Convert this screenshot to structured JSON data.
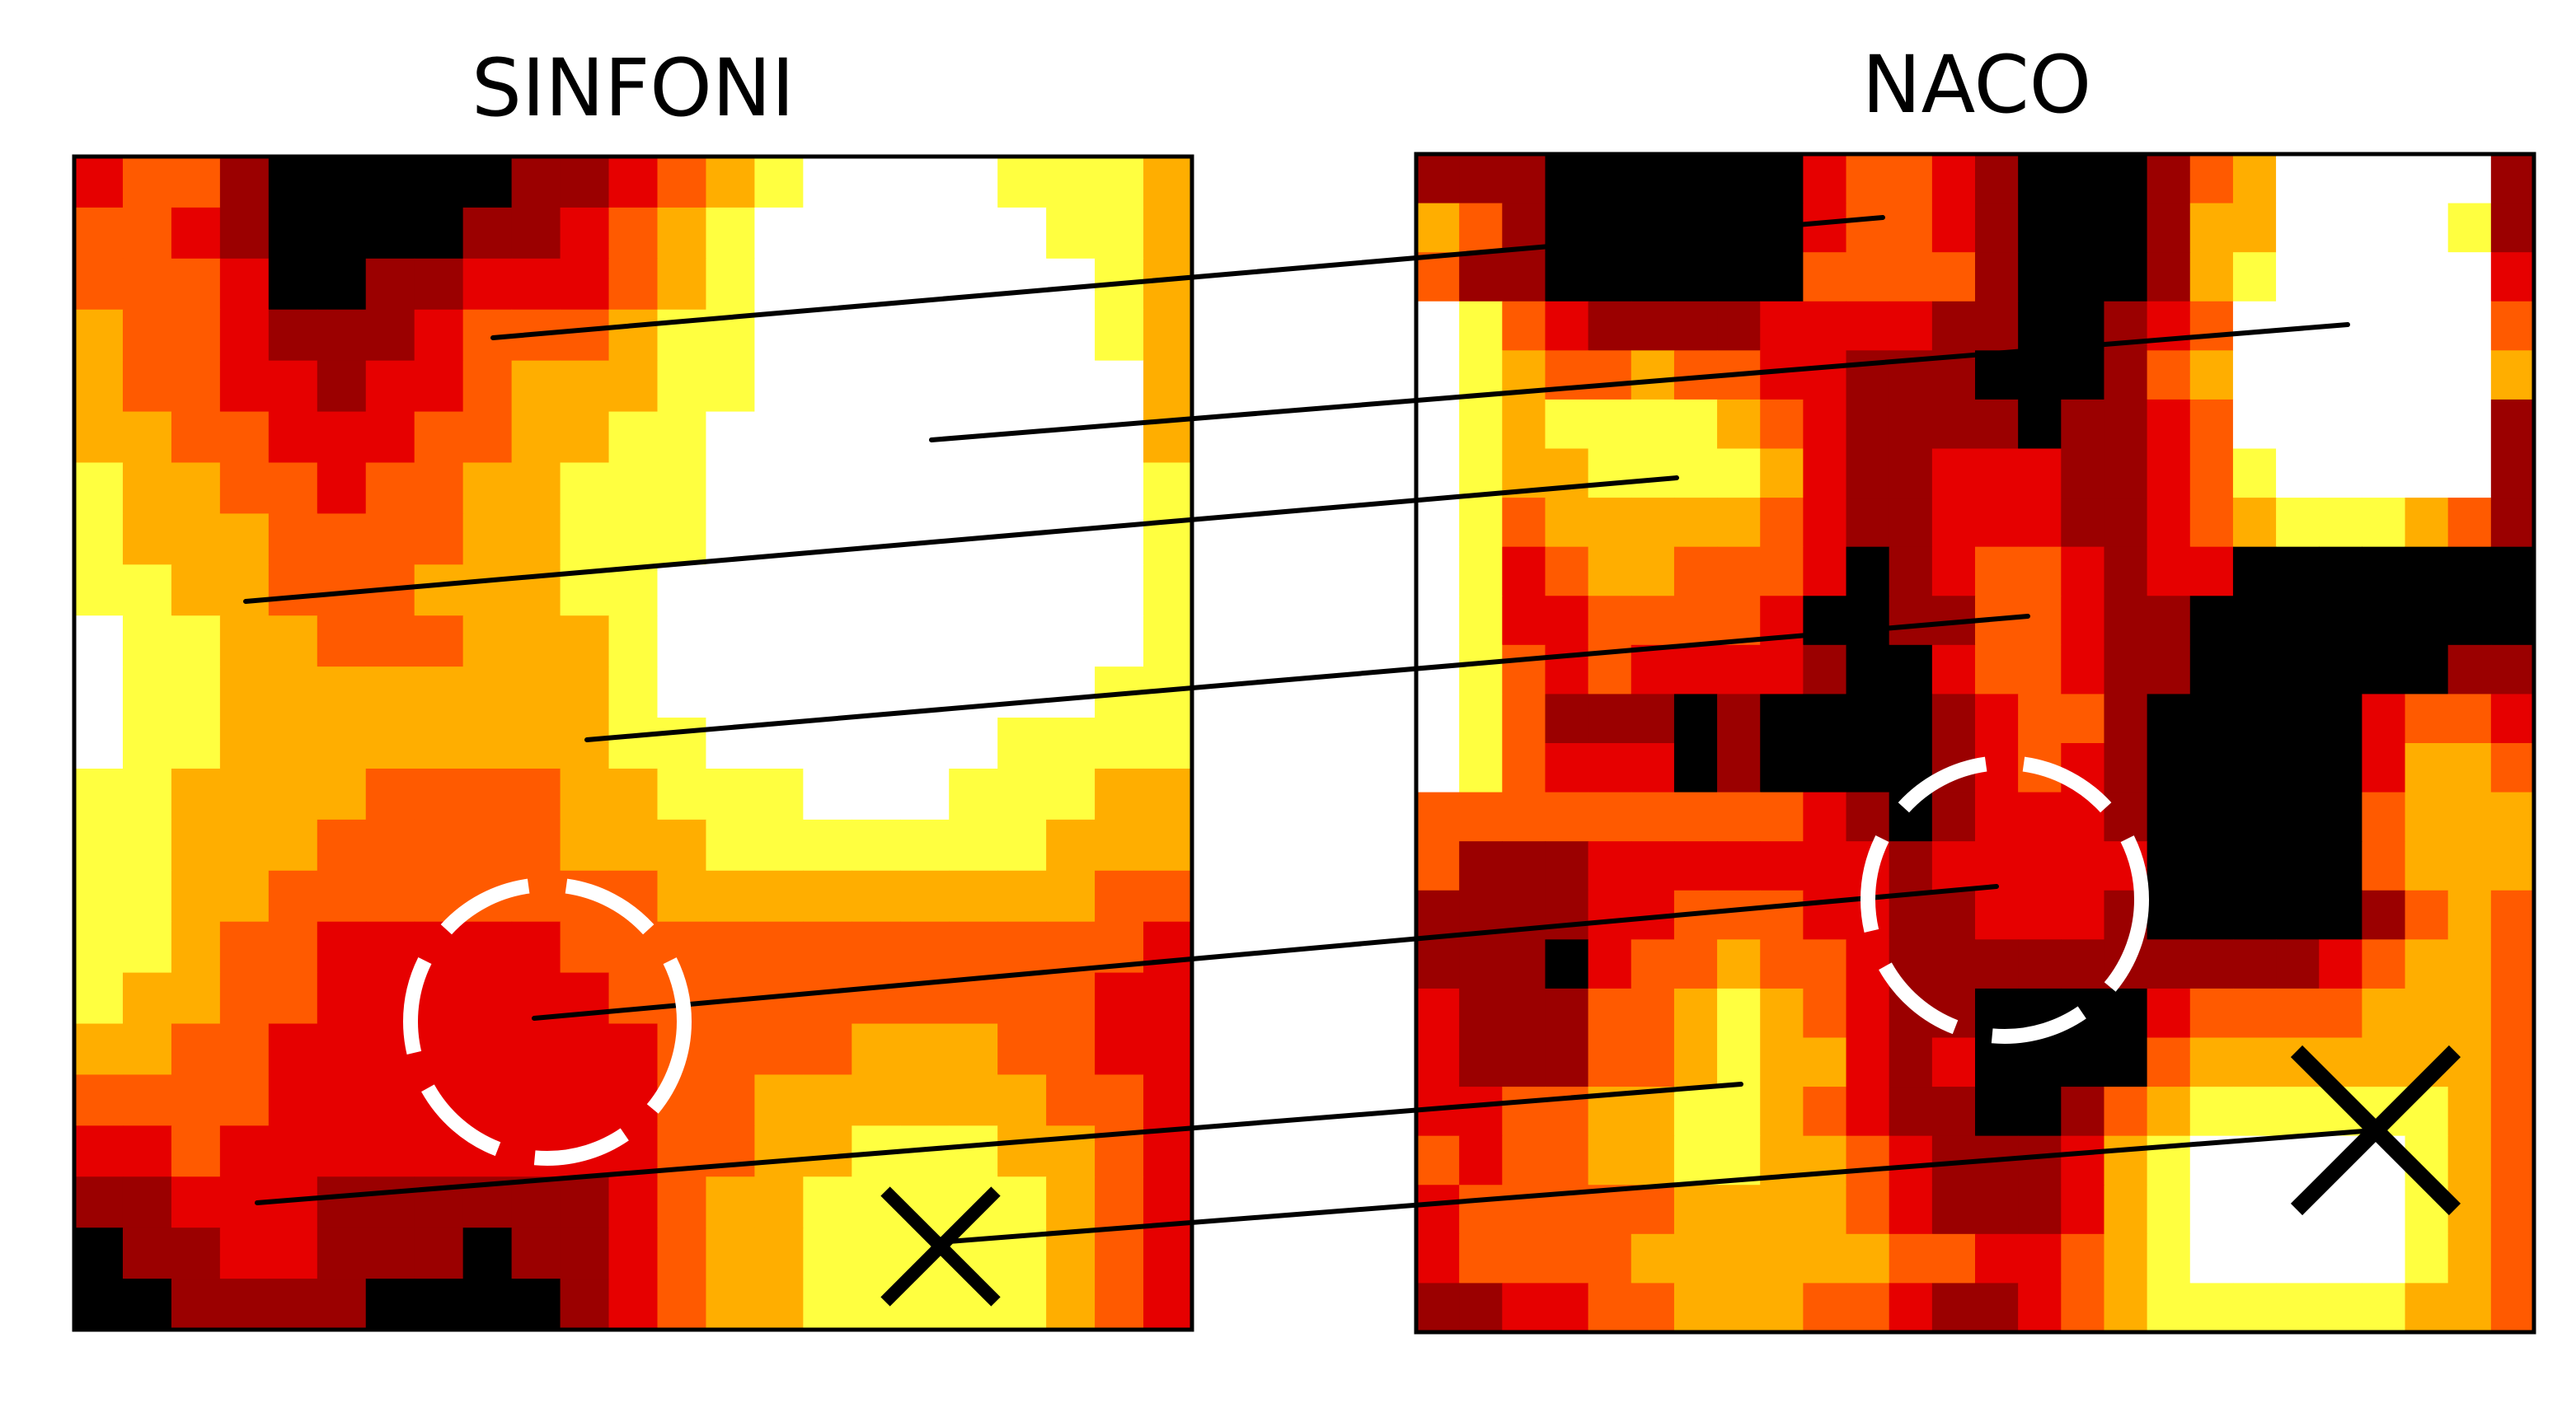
{
  "panels": {
    "left_title": "SINFONI",
    "right_title": "NACO"
  },
  "colors": {
    "heat_scale": [
      "#000000",
      "#9b0000",
      "#e60000",
      "#ff5a00",
      "#ffae00",
      "#ffff40",
      "#ffffff"
    ],
    "frame": "#000000",
    "link_line": "#000000",
    "marker_circle": "#ffffff",
    "marker_cross": "#000000"
  },
  "icons": {
    "circle_marker": "dashed-circle-icon",
    "cross_marker": "x-mark-icon"
  },
  "grids": {
    "sinfoni": [
      [
        2,
        3,
        3,
        1,
        0,
        0,
        0,
        0,
        0,
        1,
        1,
        2,
        3,
        4,
        5,
        6,
        6,
        6,
        6,
        5,
        5,
        5,
        4
      ],
      [
        3,
        3,
        2,
        1,
        0,
        0,
        0,
        0,
        1,
        1,
        2,
        3,
        4,
        5,
        6,
        6,
        6,
        6,
        6,
        6,
        5,
        5,
        4
      ],
      [
        3,
        3,
        3,
        2,
        0,
        0,
        1,
        1,
        2,
        2,
        2,
        3,
        4,
        5,
        6,
        6,
        6,
        6,
        6,
        6,
        6,
        5,
        4
      ],
      [
        4,
        3,
        3,
        2,
        1,
        1,
        1,
        2,
        3,
        3,
        3,
        4,
        5,
        5,
        6,
        6,
        6,
        6,
        6,
        6,
        6,
        5,
        4
      ],
      [
        4,
        3,
        3,
        2,
        2,
        1,
        2,
        2,
        3,
        4,
        4,
        4,
        5,
        5,
        6,
        6,
        6,
        6,
        6,
        6,
        6,
        6,
        4
      ],
      [
        4,
        4,
        3,
        3,
        2,
        2,
        2,
        3,
        3,
        4,
        4,
        5,
        5,
        6,
        6,
        6,
        6,
        6,
        6,
        6,
        6,
        6,
        4
      ],
      [
        5,
        4,
        4,
        3,
        3,
        2,
        3,
        3,
        4,
        4,
        5,
        5,
        5,
        6,
        6,
        6,
        6,
        6,
        6,
        6,
        6,
        6,
        5
      ],
      [
        5,
        4,
        4,
        4,
        3,
        3,
        3,
        3,
        4,
        4,
        5,
        5,
        5,
        6,
        6,
        6,
        6,
        6,
        6,
        6,
        6,
        6,
        5
      ],
      [
        5,
        5,
        4,
        4,
        3,
        3,
        3,
        4,
        4,
        4,
        5,
        5,
        6,
        6,
        6,
        6,
        6,
        6,
        6,
        6,
        6,
        6,
        5
      ],
      [
        6,
        5,
        5,
        4,
        4,
        3,
        3,
        3,
        4,
        4,
        4,
        5,
        6,
        6,
        6,
        6,
        6,
        6,
        6,
        6,
        6,
        6,
        5
      ],
      [
        6,
        5,
        5,
        4,
        4,
        4,
        4,
        4,
        4,
        4,
        4,
        5,
        6,
        6,
        6,
        6,
        6,
        6,
        6,
        6,
        6,
        5,
        5
      ],
      [
        6,
        5,
        5,
        4,
        4,
        4,
        4,
        4,
        4,
        4,
        4,
        5,
        5,
        6,
        6,
        6,
        6,
        6,
        6,
        5,
        5,
        5,
        5
      ],
      [
        5,
        5,
        4,
        4,
        4,
        4,
        3,
        3,
        3,
        3,
        4,
        4,
        5,
        5,
        5,
        6,
        6,
        6,
        5,
        5,
        5,
        4,
        4
      ],
      [
        5,
        5,
        4,
        4,
        4,
        3,
        3,
        3,
        3,
        3,
        4,
        4,
        4,
        5,
        5,
        5,
        5,
        5,
        5,
        5,
        4,
        4,
        4
      ],
      [
        5,
        5,
        4,
        4,
        3,
        3,
        3,
        3,
        3,
        3,
        3,
        3,
        4,
        4,
        4,
        4,
        4,
        4,
        4,
        4,
        4,
        3,
        3
      ],
      [
        5,
        5,
        4,
        3,
        3,
        2,
        2,
        2,
        2,
        2,
        3,
        3,
        3,
        3,
        3,
        3,
        3,
        3,
        3,
        3,
        3,
        3,
        2
      ],
      [
        5,
        4,
        4,
        3,
        3,
        2,
        2,
        2,
        2,
        2,
        2,
        3,
        3,
        3,
        3,
        3,
        3,
        3,
        3,
        3,
        3,
        2,
        2
      ],
      [
        4,
        4,
        3,
        3,
        2,
        2,
        2,
        2,
        2,
        2,
        2,
        2,
        3,
        3,
        3,
        3,
        4,
        4,
        4,
        3,
        3,
        2,
        2
      ],
      [
        3,
        3,
        3,
        3,
        2,
        2,
        2,
        2,
        2,
        2,
        2,
        2,
        3,
        3,
        4,
        4,
        4,
        4,
        4,
        4,
        3,
        3,
        2
      ],
      [
        2,
        2,
        3,
        2,
        2,
        2,
        2,
        2,
        2,
        2,
        2,
        2,
        3,
        3,
        4,
        4,
        5,
        5,
        5,
        4,
        4,
        3,
        2
      ],
      [
        1,
        1,
        2,
        2,
        2,
        1,
        1,
        1,
        1,
        1,
        1,
        2,
        3,
        4,
        4,
        5,
        5,
        5,
        5,
        5,
        4,
        3,
        2
      ],
      [
        0,
        1,
        1,
        2,
        2,
        1,
        1,
        1,
        0,
        1,
        1,
        2,
        3,
        4,
        4,
        5,
        5,
        5,
        5,
        5,
        4,
        3,
        2
      ],
      [
        0,
        0,
        1,
        1,
        1,
        1,
        0,
        0,
        0,
        0,
        1,
        2,
        3,
        4,
        4,
        5,
        5,
        5,
        5,
        5,
        4,
        3,
        2
      ]
    ],
    "naco": [
      [
        1,
        1,
        1,
        0,
        0,
        0,
        0,
        0,
        0,
        2,
        3,
        3,
        2,
        1,
        0,
        0,
        0,
        1,
        3,
        4,
        6,
        6,
        6,
        6,
        6,
        1
      ],
      [
        4,
        3,
        1,
        0,
        0,
        0,
        0,
        0,
        0,
        2,
        3,
        3,
        2,
        1,
        0,
        0,
        0,
        1,
        4,
        4,
        6,
        6,
        6,
        6,
        5,
        1
      ],
      [
        3,
        1,
        1,
        0,
        0,
        0,
        0,
        0,
        0,
        3,
        3,
        3,
        3,
        1,
        0,
        0,
        0,
        1,
        4,
        5,
        6,
        6,
        6,
        6,
        6,
        2
      ],
      [
        6,
        5,
        3,
        2,
        1,
        1,
        1,
        1,
        2,
        2,
        2,
        2,
        1,
        1,
        0,
        0,
        1,
        2,
        3,
        6,
        6,
        6,
        6,
        6,
        6,
        3
      ],
      [
        6,
        5,
        4,
        3,
        3,
        4,
        3,
        3,
        2,
        2,
        1,
        1,
        1,
        0,
        0,
        0,
        1,
        3,
        4,
        6,
        6,
        6,
        6,
        6,
        6,
        4
      ],
      [
        6,
        5,
        4,
        5,
        5,
        5,
        5,
        4,
        3,
        2,
        1,
        1,
        1,
        1,
        0,
        1,
        1,
        2,
        3,
        6,
        6,
        6,
        6,
        6,
        6,
        1
      ],
      [
        6,
        5,
        4,
        4,
        5,
        5,
        5,
        5,
        4,
        2,
        1,
        1,
        2,
        2,
        2,
        1,
        1,
        2,
        3,
        5,
        6,
        6,
        6,
        6,
        6,
        1
      ],
      [
        6,
        5,
        3,
        4,
        4,
        4,
        4,
        4,
        3,
        2,
        1,
        1,
        2,
        2,
        2,
        1,
        1,
        2,
        3,
        4,
        5,
        5,
        5,
        4,
        3,
        1
      ],
      [
        6,
        5,
        2,
        3,
        4,
        4,
        3,
        3,
        3,
        2,
        0,
        1,
        2,
        3,
        3,
        2,
        1,
        2,
        2,
        0,
        0,
        0,
        0,
        0,
        0,
        0
      ],
      [
        6,
        5,
        2,
        2,
        3,
        3,
        3,
        3,
        2,
        0,
        0,
        1,
        1,
        3,
        3,
        2,
        1,
        1,
        0,
        0,
        0,
        0,
        0,
        0,
        0,
        0
      ],
      [
        6,
        5,
        3,
        2,
        3,
        2,
        2,
        2,
        2,
        1,
        0,
        0,
        2,
        3,
        3,
        2,
        1,
        1,
        0,
        0,
        0,
        0,
        0,
        0,
        1,
        1
      ],
      [
        6,
        5,
        3,
        1,
        1,
        1,
        0,
        1,
        0,
        0,
        0,
        0,
        1,
        2,
        3,
        3,
        1,
        0,
        0,
        0,
        0,
        0,
        2,
        3,
        3,
        2
      ],
      [
        6,
        5,
        3,
        2,
        2,
        2,
        0,
        1,
        0,
        0,
        0,
        0,
        1,
        2,
        3,
        2,
        1,
        0,
        0,
        0,
        0,
        0,
        2,
        4,
        4,
        3
      ],
      [
        3,
        3,
        3,
        3,
        3,
        3,
        3,
        3,
        3,
        2,
        1,
        0,
        1,
        2,
        2,
        2,
        1,
        0,
        0,
        0,
        0,
        0,
        3,
        4,
        4,
        4
      ],
      [
        3,
        1,
        1,
        1,
        2,
        2,
        2,
        2,
        2,
        2,
        2,
        1,
        2,
        2,
        2,
        2,
        2,
        0,
        0,
        0,
        0,
        0,
        3,
        4,
        4,
        4
      ],
      [
        1,
        1,
        1,
        1,
        2,
        2,
        3,
        3,
        3,
        2,
        2,
        1,
        1,
        2,
        2,
        2,
        1,
        0,
        0,
        0,
        0,
        0,
        1,
        3,
        4,
        3
      ],
      [
        1,
        1,
        1,
        0,
        2,
        3,
        3,
        4,
        3,
        3,
        2,
        1,
        1,
        1,
        1,
        1,
        1,
        1,
        1,
        1,
        1,
        2,
        3,
        4,
        4,
        3
      ],
      [
        2,
        1,
        1,
        1,
        3,
        3,
        4,
        5,
        4,
        3,
        2,
        1,
        1,
        0,
        0,
        0,
        0,
        2,
        3,
        3,
        3,
        3,
        4,
        4,
        4,
        3
      ],
      [
        2,
        1,
        1,
        1,
        3,
        3,
        4,
        5,
        4,
        4,
        2,
        1,
        2,
        0,
        0,
        0,
        0,
        3,
        4,
        4,
        4,
        4,
        4,
        4,
        4,
        3
      ],
      [
        2,
        2,
        3,
        3,
        4,
        4,
        5,
        5,
        4,
        3,
        2,
        1,
        1,
        0,
        0,
        1,
        3,
        4,
        5,
        5,
        5,
        5,
        5,
        5,
        4,
        3
      ],
      [
        3,
        2,
        3,
        3,
        4,
        4,
        5,
        5,
        4,
        4,
        3,
        2,
        1,
        1,
        1,
        2,
        4,
        5,
        6,
        6,
        6,
        6,
        6,
        5,
        4,
        3
      ],
      [
        2,
        3,
        3,
        3,
        3,
        3,
        4,
        4,
        4,
        4,
        3,
        2,
        1,
        1,
        1,
        2,
        4,
        5,
        6,
        6,
        6,
        6,
        6,
        5,
        4,
        3
      ],
      [
        2,
        3,
        3,
        3,
        3,
        4,
        4,
        4,
        4,
        4,
        4,
        3,
        3,
        2,
        2,
        3,
        4,
        5,
        6,
        6,
        6,
        6,
        6,
        5,
        4,
        3
      ],
      [
        1,
        1,
        2,
        2,
        3,
        3,
        4,
        4,
        4,
        3,
        3,
        2,
        1,
        1,
        2,
        3,
        4,
        5,
        5,
        5,
        5,
        5,
        5,
        4,
        4,
        3
      ]
    ]
  }
}
